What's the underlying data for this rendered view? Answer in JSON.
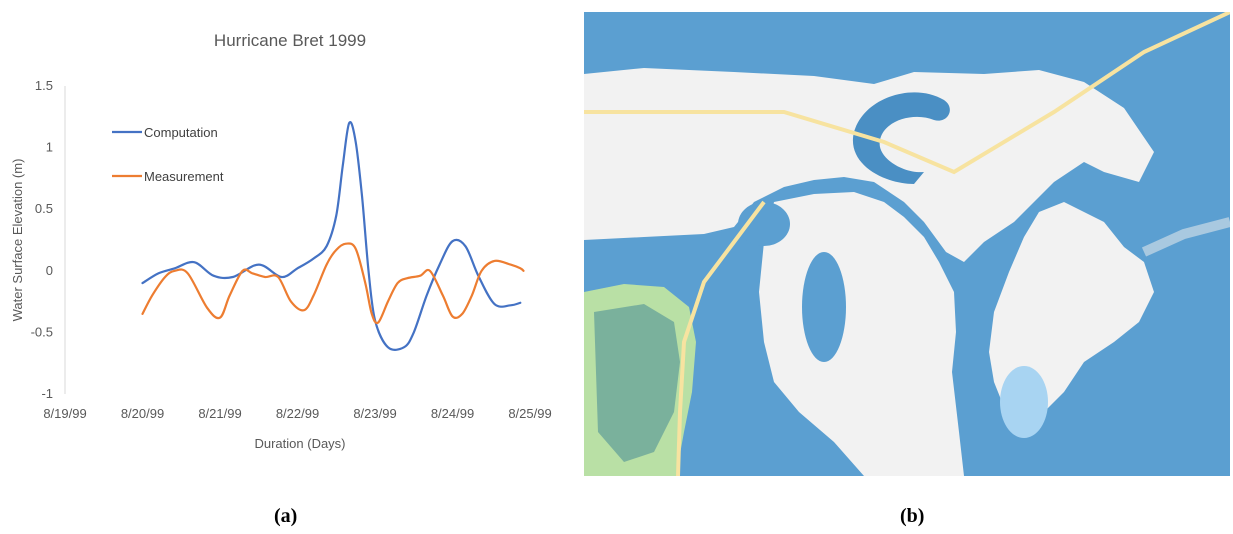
{
  "chart_data": {
    "type": "line",
    "title": "Hurricane Bret 1999",
    "xlabel": "Duration (Days)",
    "ylabel": "Water Surface Elevation (m)",
    "xlim": [
      "8/19/99",
      "8/25/99"
    ],
    "ylim": [
      -1,
      1.5
    ],
    "x_ticks": [
      "8/19/99",
      "8/20/99",
      "8/21/99",
      "8/22/99",
      "8/23/99",
      "8/24/99",
      "8/25/99"
    ],
    "y_ticks": [
      -1,
      -0.5,
      0,
      0.5,
      1,
      1.5
    ],
    "y_tick_labels": [
      "-1",
      "-0.5",
      "0",
      "0.5",
      "1",
      "1.5"
    ],
    "grid": false,
    "legend": "top-left",
    "series": [
      {
        "name": "Computation",
        "color": "#4472C4",
        "x": [
          "8/20/99 00:00",
          "8/20/99 05:00",
          "8/20/99 10:00",
          "8/20/99 16:00",
          "8/20/99 22:00",
          "8/21/99 04:00",
          "8/21/99 12:00",
          "8/21/99 19:00",
          "8/22/99 00:00",
          "8/22/99 05:00",
          "8/22/99 09:00",
          "8/22/99 12:00",
          "8/22/99 14:00",
          "8/22/99 16:00",
          "8/22/99 18:00",
          "8/22/99 20:00",
          "8/22/99 22:00",
          "8/23/99 00:00",
          "8/23/99 04:00",
          "8/23/99 09:00",
          "8/23/99 12:00",
          "8/23/99 16:00",
          "8/23/99 20:00",
          "8/24/99 00:00",
          "8/24/99 04:00",
          "8/24/99 08:00",
          "8/24/99 13:00",
          "8/24/99 18:00",
          "8/24/99 21:00"
        ],
        "values": [
          -0.1,
          -0.02,
          0.02,
          0.07,
          -0.04,
          -0.05,
          0.05,
          -0.05,
          0.02,
          0.1,
          0.2,
          0.45,
          0.85,
          1.2,
          1.05,
          0.6,
          0.0,
          -0.4,
          -0.62,
          -0.62,
          -0.5,
          -0.2,
          0.05,
          0.24,
          0.2,
          -0.04,
          -0.27,
          -0.28,
          -0.26
        ]
      },
      {
        "name": "Measurement",
        "color": "#ED7D31",
        "x": [
          "8/20/99 00:00",
          "8/20/99 03:00",
          "8/20/99 07:00",
          "8/20/99 10:00",
          "8/20/99 14:00",
          "8/20/99 20:00",
          "8/21/99 00:00",
          "8/21/99 03:00",
          "8/21/99 07:00",
          "8/21/99 10:00",
          "8/21/99 14:00",
          "8/21/99 18:00",
          "8/21/99 22:00",
          "8/22/99 02:00",
          "8/22/99 05:00",
          "8/22/99 09:00",
          "8/22/99 12:00",
          "8/22/99 15:00",
          "8/22/99 18:00",
          "8/22/99 21:00",
          "8/22/99 23:00",
          "8/23/99 01:00",
          "8/23/99 04:00",
          "8/23/99 07:00",
          "8/23/99 10:00",
          "8/23/99 14:00",
          "8/23/99 17:00",
          "8/23/99 21:00",
          "8/24/99 00:00",
          "8/24/99 03:00",
          "8/24/99 06:00",
          "8/24/99 09:00",
          "8/24/99 13:00",
          "8/24/99 18:00",
          "8/24/99 21:00",
          "8/24/99 22:00"
        ],
        "values": [
          -0.35,
          -0.2,
          -0.05,
          0.0,
          -0.02,
          -0.3,
          -0.38,
          -0.2,
          0.0,
          -0.02,
          -0.05,
          -0.05,
          -0.25,
          -0.32,
          -0.2,
          0.05,
          0.17,
          0.22,
          0.18,
          -0.1,
          -0.35,
          -0.42,
          -0.25,
          -0.1,
          -0.06,
          -0.04,
          0.0,
          -0.2,
          -0.37,
          -0.35,
          -0.2,
          0.0,
          0.08,
          0.05,
          0.02,
          0.0
        ]
      }
    ]
  },
  "captions": {
    "a": "(a)",
    "b": "(b)"
  }
}
